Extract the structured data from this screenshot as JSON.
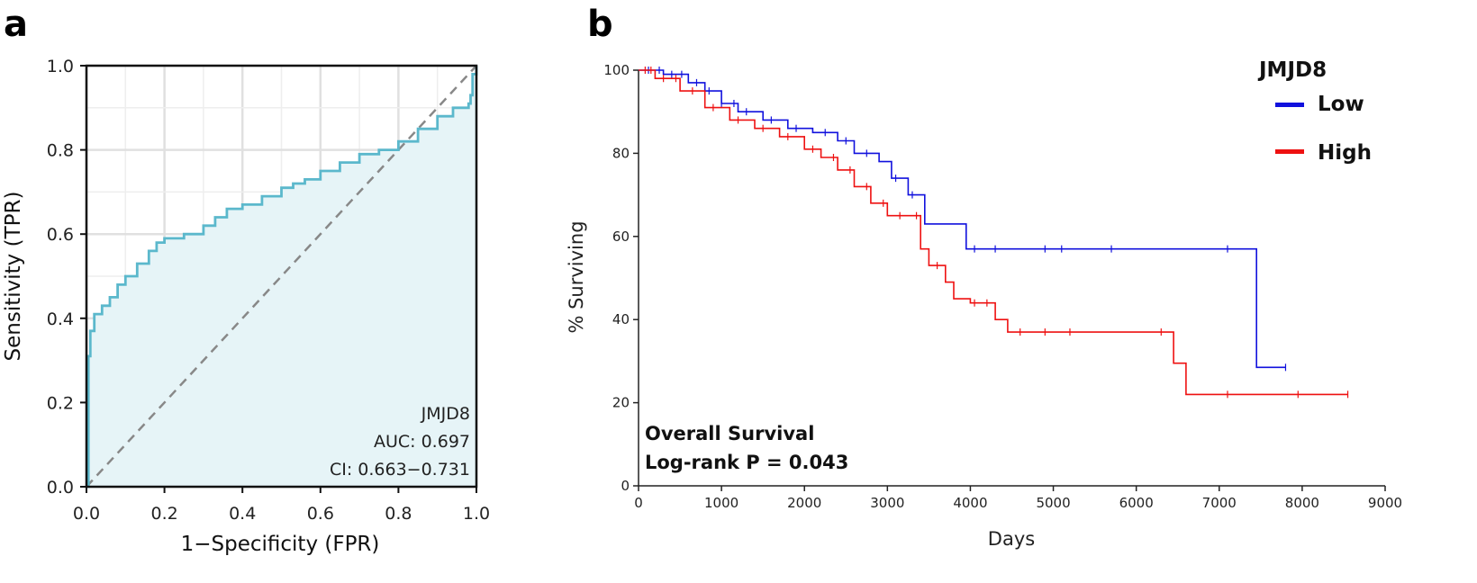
{
  "chart_data": [
    {
      "panel": "a",
      "type": "line",
      "subtype": "roc",
      "xlabel": "1−Specificity (FPR)",
      "ylabel": "Sensitivity (TPR)",
      "xlim": [
        0,
        1
      ],
      "ylim": [
        0,
        1
      ],
      "xticks": [
        "0.0",
        "0.2",
        "0.4",
        "0.6",
        "0.8",
        "1.0"
      ],
      "yticks": [
        "0.0",
        "0.2",
        "0.4",
        "0.6",
        "0.8",
        "1.0"
      ],
      "grid": true,
      "colors": {
        "curve": "#5bb8cc",
        "fill": "#e6f4f7",
        "diagonal": "#888888"
      },
      "roc": {
        "fpr": [
          0,
          0.005,
          0.01,
          0.02,
          0.04,
          0.06,
          0.08,
          0.1,
          0.13,
          0.16,
          0.18,
          0.2,
          0.25,
          0.3,
          0.33,
          0.36,
          0.4,
          0.45,
          0.5,
          0.53,
          0.56,
          0.6,
          0.65,
          0.7,
          0.75,
          0.8,
          0.85,
          0.9,
          0.94,
          0.98,
          0.985,
          0.99,
          1.0
        ],
        "tpr": [
          0,
          0.31,
          0.37,
          0.41,
          0.43,
          0.45,
          0.48,
          0.5,
          0.53,
          0.56,
          0.58,
          0.59,
          0.6,
          0.62,
          0.64,
          0.66,
          0.67,
          0.69,
          0.71,
          0.72,
          0.73,
          0.75,
          0.77,
          0.79,
          0.8,
          0.82,
          0.85,
          0.88,
          0.9,
          0.91,
          0.93,
          0.98,
          1.0
        ]
      },
      "annotations": [
        "JMJD8",
        "AUC: 0.697",
        "CI: 0.663−0.731"
      ]
    },
    {
      "panel": "b",
      "type": "line",
      "subtype": "kaplan-meier",
      "xlabel": "Days",
      "ylabel": "% Surviving",
      "xlim": [
        0,
        9000
      ],
      "ylim": [
        0,
        100
      ],
      "xticks": [
        "0",
        "1000",
        "2000",
        "3000",
        "4000",
        "5000",
        "6000",
        "7000",
        "8000",
        "9000"
      ],
      "yticks": [
        "0",
        "20",
        "40",
        "60",
        "80",
        "100"
      ],
      "legend": {
        "title": "JMJD8",
        "position": "top-right",
        "entries": [
          {
            "name": "Low",
            "color": "#1111dd"
          },
          {
            "name": "High",
            "color": "#ee1111"
          }
        ]
      },
      "series": [
        {
          "name": "Low",
          "color": "#1111dd",
          "x": [
            0,
            300,
            600,
            800,
            1000,
            1200,
            1500,
            1800,
            2100,
            2400,
            2600,
            2900,
            3050,
            3250,
            3450,
            3950,
            7450,
            7800
          ],
          "y": [
            100,
            99,
            97,
            95,
            92,
            90,
            88,
            86,
            85,
            83,
            80,
            78,
            74,
            70,
            63,
            57,
            28.5,
            28.5
          ],
          "censored_x": [
            120,
            250,
            400,
            520,
            700,
            850,
            1000,
            1150,
            1300,
            1600,
            1900,
            2250,
            2500,
            2750,
            3100,
            3300,
            4050,
            4300,
            4900,
            5100,
            5700,
            7100,
            7800
          ]
        },
        {
          "name": "High",
          "color": "#ee1111",
          "x": [
            0,
            200,
            500,
            800,
            1100,
            1400,
            1700,
            2000,
            2200,
            2400,
            2600,
            2800,
            3000,
            3300,
            3400,
            3500,
            3700,
            3800,
            4000,
            4300,
            4450,
            6450,
            6600,
            8550
          ],
          "y": [
            100,
            98,
            95,
            91,
            88,
            86,
            84,
            81,
            79,
            76,
            72,
            68,
            65,
            65,
            57,
            53,
            49,
            45,
            44,
            40,
            37,
            29.5,
            22,
            22
          ],
          "censored_x": [
            80,
            150,
            300,
            450,
            650,
            900,
            1200,
            1500,
            1800,
            2100,
            2350,
            2550,
            2750,
            2950,
            3150,
            3350,
            3600,
            4050,
            4200,
            4600,
            4900,
            5200,
            6300,
            7100,
            7950,
            8550
          ]
        }
      ],
      "annotations": [
        "Overall Survival",
        "Log-rank P = 0.043"
      ]
    }
  ]
}
